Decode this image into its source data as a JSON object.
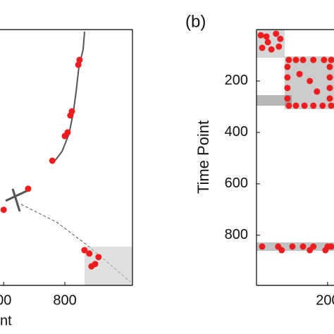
{
  "chart_data": [
    {
      "type": "scatter",
      "x_label": "nt",
      "xlim": [
        588,
        1021
      ],
      "ylim": [
        0,
        995
      ],
      "y_inverted": true,
      "xticks": [
        {
          "value": 600,
          "label": "00"
        },
        800
      ],
      "color": "#ee1c1c",
      "x": [
        848,
        844,
        823,
        818,
        809,
        800,
        759,
        680,
        600,
        864,
        880,
        910,
        899,
        887
      ],
      "y": [
        118,
        137,
        318,
        334,
        400,
        414,
        510,
        619,
        701,
        858,
        871,
        885,
        912,
        921
      ]
    },
    {
      "type": "scatter",
      "panel_label": "(b)",
      "y_label": "Time Point",
      "xlim": [
        0,
        218
      ],
      "ylim": [
        0,
        995
      ],
      "y_inverted": true,
      "xticks": [
        200
      ],
      "yticks": [
        200,
        400,
        600,
        800
      ],
      "color": "#ee1c1c",
      "x": [
        12,
        28,
        55,
        67,
        16,
        42,
        63,
        32,
        91,
        111,
        131,
        160,
        190,
        210,
        91,
        111,
        135,
        160,
        186,
        210,
        87,
        87,
        87,
        87,
        206,
        206,
        206,
        206,
        121,
        170,
        150,
        16,
        61,
        101,
        131,
        160,
        200,
        210,
        71,
        150,
        194
      ],
      "y": [
        22,
        27,
        16,
        36,
        71,
        77,
        66,
        49,
        118,
        118,
        118,
        118,
        118,
        118,
        296,
        296,
        296,
        296,
        296,
        296,
        145,
        186,
        227,
        268,
        145,
        186,
        227,
        268,
        173,
        241,
        200,
        844,
        844,
        844,
        844,
        844,
        844,
        844,
        858,
        858,
        858
      ]
    }
  ]
}
